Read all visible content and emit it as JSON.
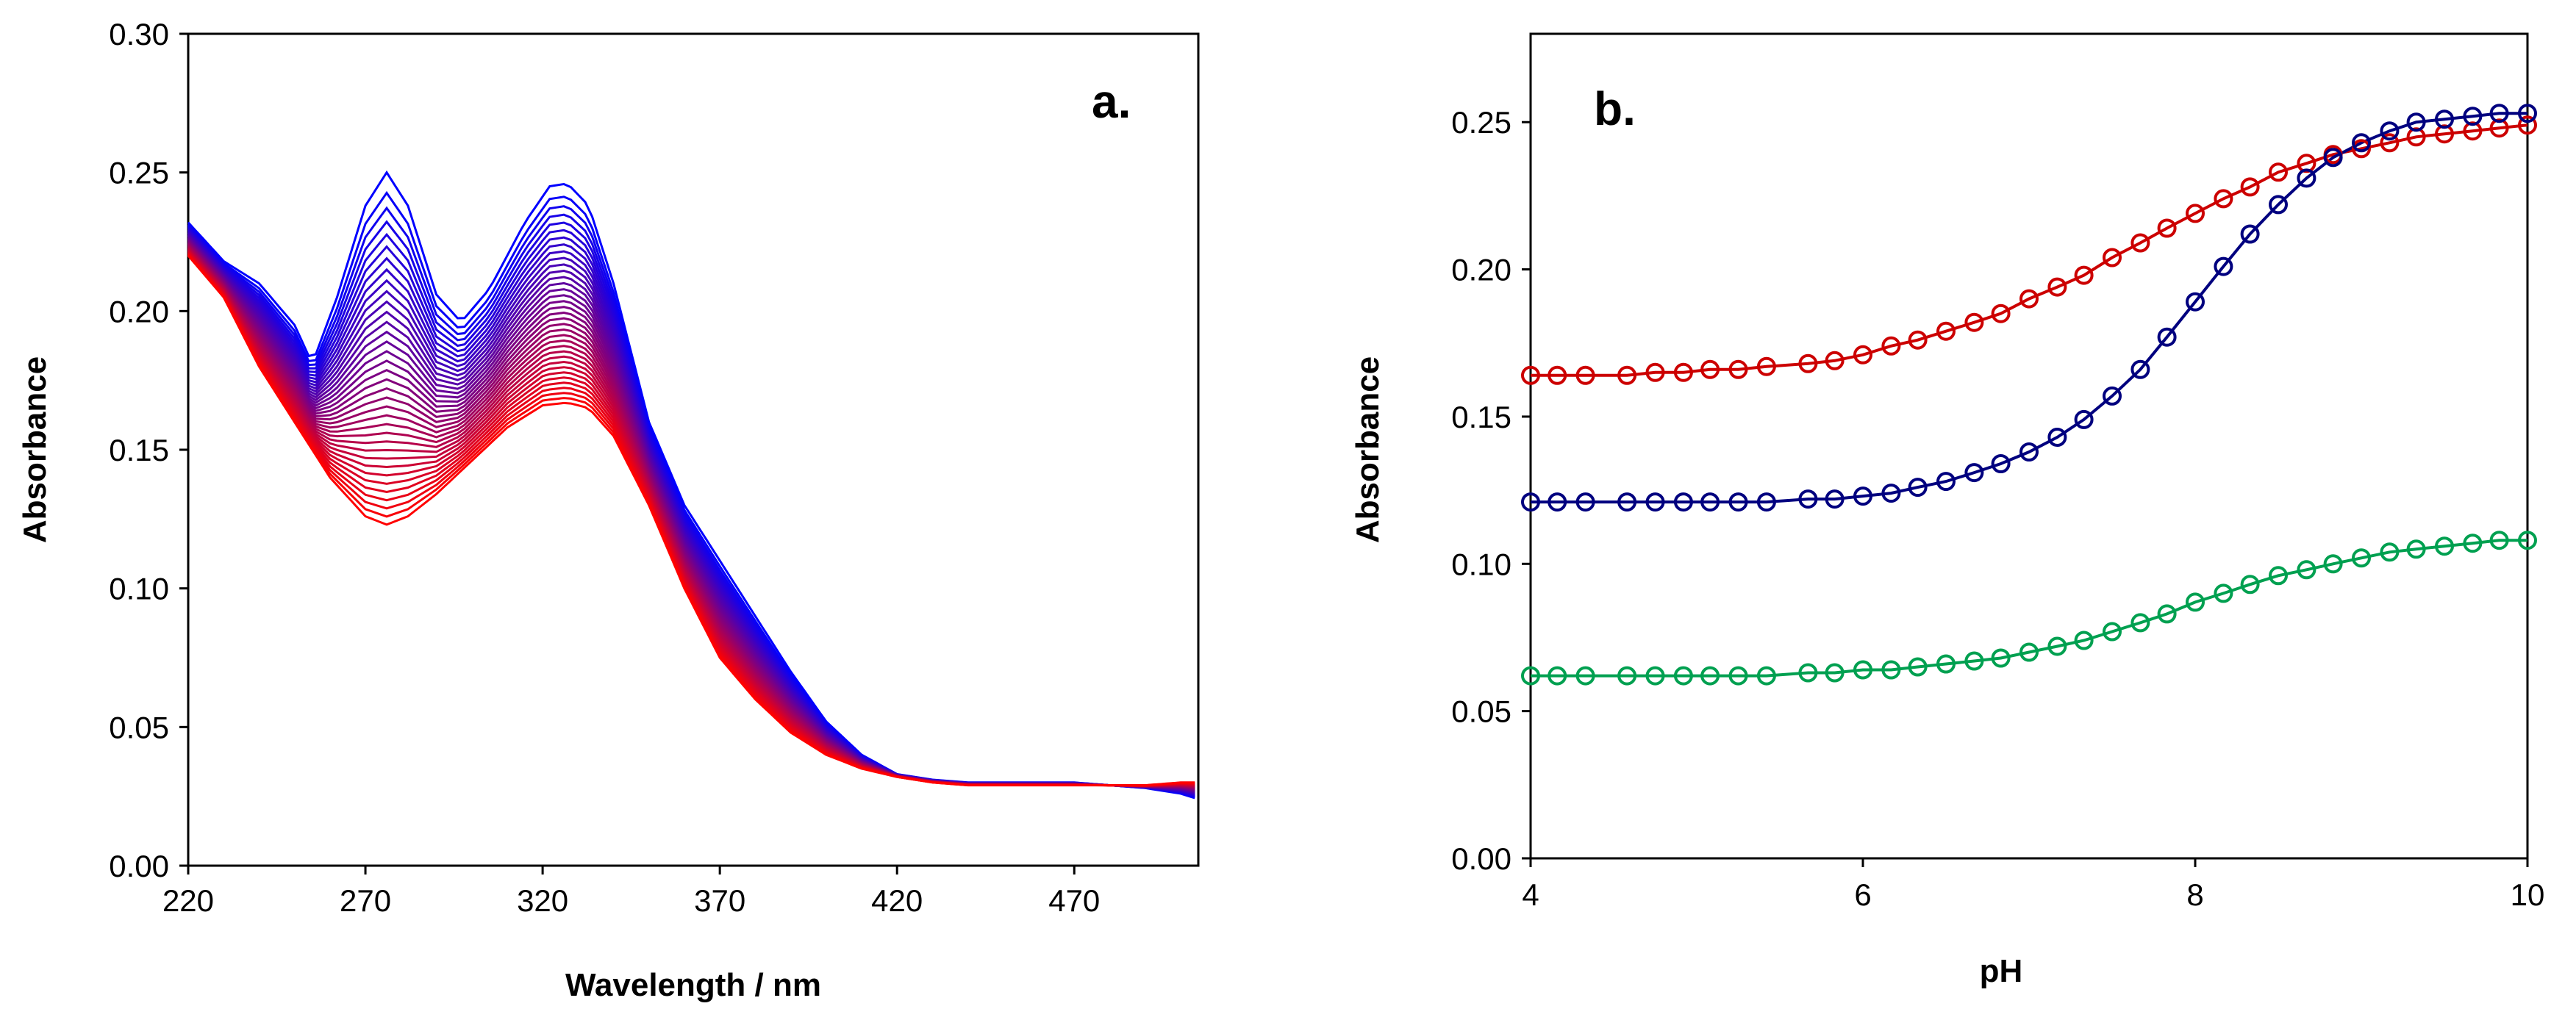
{
  "chart_data": [
    {
      "panel": "a.",
      "type": "line",
      "title": "",
      "xlabel": "Wavelength / nm",
      "ylabel": "Absorbance",
      "xlim": [
        220,
        505
      ],
      "ylim": [
        0.0,
        0.3
      ],
      "xticks": [
        220,
        270,
        320,
        370,
        420,
        470
      ],
      "yticks": [
        "0.00",
        "0.05",
        "0.10",
        "0.15",
        "0.20",
        "0.25",
        "0.30"
      ],
      "color_gradient": [
        "#0000ff",
        "#ff0000"
      ],
      "series_count": 36,
      "grid": false,
      "start_spectrum": {
        "name": "blue (first)",
        "x": [
          220,
          230,
          240,
          250,
          255,
          262,
          270,
          276,
          282,
          290,
          297,
          305,
          315,
          322,
          327,
          333,
          340,
          350,
          360,
          370,
          380,
          390,
          400,
          410,
          420,
          430,
          440,
          450,
          460,
          470,
          480,
          490,
          500,
          505
        ],
        "y": [
          0.232,
          0.218,
          0.21,
          0.195,
          0.181,
          0.205,
          0.238,
          0.25,
          0.238,
          0.206,
          0.196,
          0.208,
          0.232,
          0.245,
          0.246,
          0.238,
          0.21,
          0.16,
          0.13,
          0.11,
          0.09,
          0.07,
          0.052,
          0.04,
          0.033,
          0.031,
          0.03,
          0.03,
          0.03,
          0.03,
          0.029,
          0.028,
          0.026,
          0.024
        ]
      },
      "end_spectrum": {
        "name": "red (last)",
        "x": [
          220,
          230,
          240,
          250,
          260,
          270,
          276,
          282,
          290,
          300,
          310,
          320,
          327,
          333,
          340,
          350,
          360,
          370,
          380,
          390,
          400,
          410,
          420,
          430,
          440,
          450,
          460,
          470,
          480,
          490,
          500,
          505
        ],
        "y": [
          0.22,
          0.205,
          0.18,
          0.16,
          0.14,
          0.126,
          0.123,
          0.126,
          0.134,
          0.146,
          0.158,
          0.166,
          0.167,
          0.165,
          0.155,
          0.13,
          0.1,
          0.075,
          0.06,
          0.048,
          0.04,
          0.035,
          0.032,
          0.03,
          0.029,
          0.029,
          0.029,
          0.029,
          0.029,
          0.029,
          0.03,
          0.03
        ]
      }
    },
    {
      "panel": "b.",
      "type": "scatter",
      "title": "",
      "xlabel": "pH",
      "ylabel": "Absorbance",
      "xlim": [
        4,
        10
      ],
      "ylim": [
        0.0,
        0.28
      ],
      "xticks": [
        "4",
        "6",
        "8",
        "10"
      ],
      "yticks": [
        "0.00",
        "0.05",
        "0.10",
        "0.15",
        "0.20",
        "0.25"
      ],
      "grid": false,
      "series": [
        {
          "name": "red",
          "color": "#cc0000",
          "x": [
            4.0,
            4.16,
            4.33,
            4.58,
            4.75,
            4.92,
            5.08,
            5.25,
            5.42,
            5.67,
            5.83,
            6.0,
            6.17,
            6.33,
            6.5,
            6.67,
            6.83,
            7.0,
            7.17,
            7.33,
            7.5,
            7.67,
            7.83,
            8.0,
            8.17,
            8.33,
            8.5,
            8.67,
            8.83,
            9.0,
            9.17,
            9.33,
            9.5,
            9.67,
            9.83,
            10.0
          ],
          "y": [
            0.164,
            0.164,
            0.164,
            0.164,
            0.165,
            0.165,
            0.166,
            0.166,
            0.167,
            0.168,
            0.169,
            0.171,
            0.174,
            0.176,
            0.179,
            0.182,
            0.185,
            0.19,
            0.194,
            0.198,
            0.204,
            0.209,
            0.214,
            0.219,
            0.224,
            0.228,
            0.233,
            0.236,
            0.239,
            0.241,
            0.243,
            0.245,
            0.246,
            0.247,
            0.248,
            0.249
          ]
        },
        {
          "name": "blue",
          "color": "#00007f",
          "x": [
            4.0,
            4.16,
            4.33,
            4.58,
            4.75,
            4.92,
            5.08,
            5.25,
            5.42,
            5.67,
            5.83,
            6.0,
            6.17,
            6.33,
            6.5,
            6.67,
            6.83,
            7.0,
            7.17,
            7.33,
            7.5,
            7.67,
            7.83,
            8.0,
            8.17,
            8.33,
            8.5,
            8.67,
            8.83,
            9.0,
            9.17,
            9.33,
            9.5,
            9.67,
            9.83,
            10.0
          ],
          "y": [
            0.121,
            0.121,
            0.121,
            0.121,
            0.121,
            0.121,
            0.121,
            0.121,
            0.121,
            0.122,
            0.122,
            0.123,
            0.124,
            0.126,
            0.128,
            0.131,
            0.134,
            0.138,
            0.143,
            0.149,
            0.157,
            0.166,
            0.177,
            0.189,
            0.201,
            0.212,
            0.222,
            0.231,
            0.238,
            0.243,
            0.247,
            0.25,
            0.251,
            0.252,
            0.253,
            0.253
          ]
        },
        {
          "name": "green",
          "color": "#00a050",
          "x": [
            4.0,
            4.16,
            4.33,
            4.58,
            4.75,
            4.92,
            5.08,
            5.25,
            5.42,
            5.67,
            5.83,
            6.0,
            6.17,
            6.33,
            6.5,
            6.67,
            6.83,
            7.0,
            7.17,
            7.33,
            7.5,
            7.67,
            7.83,
            8.0,
            8.17,
            8.33,
            8.5,
            8.67,
            8.83,
            9.0,
            9.17,
            9.33,
            9.5,
            9.67,
            9.83,
            10.0
          ],
          "y": [
            0.062,
            0.062,
            0.062,
            0.062,
            0.062,
            0.062,
            0.062,
            0.062,
            0.062,
            0.063,
            0.063,
            0.064,
            0.064,
            0.065,
            0.066,
            0.067,
            0.068,
            0.07,
            0.072,
            0.074,
            0.077,
            0.08,
            0.083,
            0.087,
            0.09,
            0.093,
            0.096,
            0.098,
            0.1,
            0.102,
            0.104,
            0.105,
            0.106,
            0.107,
            0.108,
            0.108
          ]
        }
      ]
    }
  ]
}
